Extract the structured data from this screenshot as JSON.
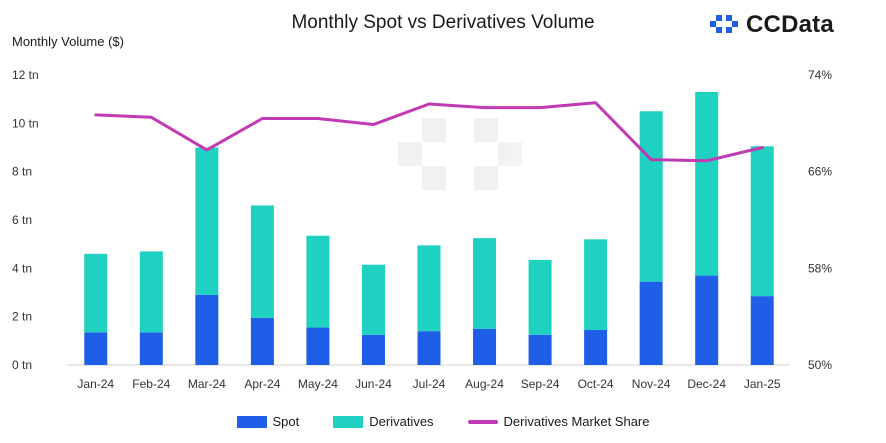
{
  "header": {
    "title": "Monthly Spot vs Derivatives Volume",
    "brand": "CCData"
  },
  "colors": {
    "spot": "#1f5fe8",
    "derivatives": "#1fd1c0",
    "market_share": "#c13ab3",
    "axis": "#333333"
  },
  "chart_data": {
    "type": "bar",
    "title": "Monthly Spot vs Derivatives Volume",
    "ylabel": "Monthly Volume ($)",
    "ylabel_right": "",
    "xlabel": "",
    "stacked": true,
    "categories": [
      "Jan-24",
      "Feb-24",
      "Mar-24",
      "Apr-24",
      "May-24",
      "Jun-24",
      "Jul-24",
      "Aug-24",
      "Sep-24",
      "Oct-24",
      "Nov-24",
      "Dec-24",
      "Jan-25"
    ],
    "series": [
      {
        "name": "Spot",
        "kind": "bar",
        "axis": "left",
        "values": [
          1.35,
          1.35,
          2.9,
          1.95,
          1.55,
          1.25,
          1.4,
          1.5,
          1.25,
          1.45,
          3.45,
          3.7,
          2.85
        ]
      },
      {
        "name": "Derivatives",
        "kind": "bar",
        "axis": "left",
        "values": [
          3.25,
          3.35,
          6.1,
          4.65,
          3.8,
          2.9,
          3.55,
          3.75,
          3.1,
          3.75,
          7.05,
          7.6,
          6.2
        ]
      },
      {
        "name": "Derivatives Market Share",
        "kind": "line",
        "axis": "right",
        "values": [
          70.7,
          70.5,
          67.8,
          70.4,
          70.4,
          69.9,
          71.6,
          71.3,
          71.3,
          71.7,
          67.0,
          66.9,
          68.0
        ]
      }
    ],
    "ylim": [
      0,
      12
    ],
    "yticks": [
      0,
      2,
      4,
      6,
      8,
      10,
      12
    ],
    "ytick_labels": [
      "0 tn",
      "2 tn",
      "4 tn",
      "6 tn",
      "8 tn",
      "10 tn",
      "12 tn"
    ],
    "ylim_right": [
      50,
      74
    ],
    "yticks_right": [
      50,
      58,
      66,
      74
    ],
    "ytick_labels_right": [
      "50%",
      "58%",
      "66%",
      "74%"
    ],
    "grid": false,
    "legend_position": "bottom"
  }
}
